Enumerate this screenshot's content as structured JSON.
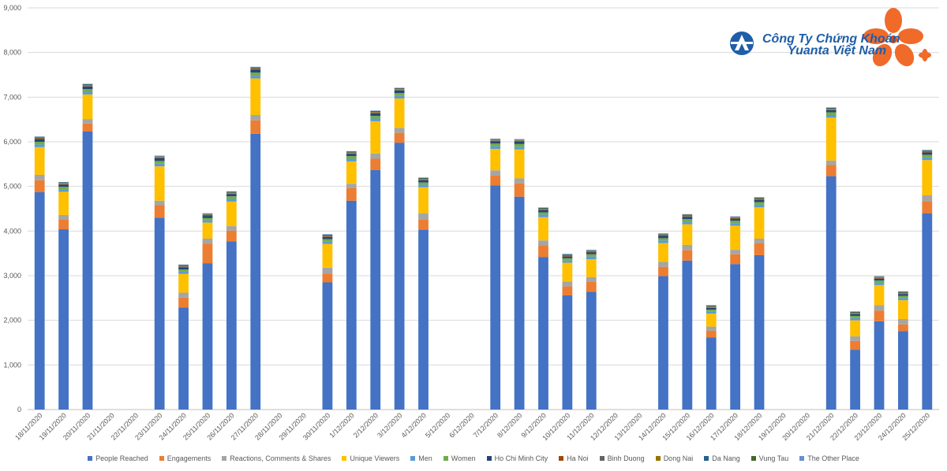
{
  "brand": {
    "line1": "Công Ty Chứng Khoán",
    "line2": "Yuanta Việt Nam",
    "text_color": "#1f5ea8",
    "flower_color": "#f06a2a"
  },
  "chart_data": {
    "type": "bar",
    "stacked": true,
    "title": "",
    "xlabel": "",
    "ylabel": "",
    "ylim": [
      0,
      9000
    ],
    "yticks": [
      "0",
      "1,000",
      "2,000",
      "3,000",
      "4,000",
      "5,000",
      "6,000",
      "7,000",
      "8,000",
      "9,000"
    ],
    "grid": true,
    "legend_position": "bottom",
    "categories": [
      "18/11/2020",
      "19/11/2020",
      "20/11/2020",
      "21/11/2020",
      "22/11/2020",
      "23/11/2020",
      "24/11/2020",
      "25/11/2020",
      "26/11/2020",
      "27/11/2020",
      "28/11/2020",
      "29/11/2020",
      "30/11/2020",
      "1/12/2020",
      "2/12/2020",
      "3/12/2020",
      "4/12/2020",
      "5/12/2020",
      "6/12/2020",
      "7/12/2020",
      "8/12/2020",
      "9/12/2020",
      "10/12/2020",
      "11/12/2020",
      "12/12/2020",
      "13/12/2020",
      "14/12/2020",
      "15/12/2020",
      "16/12/2020",
      "17/12/2020",
      "18/12/2020",
      "19/12/2020",
      "20/12/2020",
      "21/12/2020",
      "22/12/2020",
      "23/12/2020",
      "24/12/2020",
      "25/12/2020"
    ],
    "series": [
      {
        "name": "People Reached",
        "color": "#4472c4",
        "values": [
          4870,
          4040,
          6230,
          0,
          0,
          4300,
          2290,
          3280,
          3770,
          6180,
          0,
          0,
          2850,
          4680,
          5370,
          5980,
          4030,
          0,
          0,
          5020,
          4770,
          3420,
          2560,
          2640,
          0,
          0,
          2990,
          3340,
          1620,
          3260,
          3460,
          0,
          0,
          5230,
          1340,
          1980,
          1760,
          4400
        ]
      },
      {
        "name": "Engagements",
        "color": "#ed7d31",
        "values": [
          270,
          220,
          180,
          0,
          0,
          280,
          220,
          440,
          240,
          300,
          0,
          0,
          200,
          280,
          250,
          220,
          230,
          0,
          0,
          220,
          300,
          250,
          200,
          220,
          0,
          0,
          210,
          230,
          150,
          220,
          270,
          0,
          0,
          250,
          200,
          240,
          150,
          270
        ]
      },
      {
        "name": "Reactions, Comments & Shares",
        "color": "#a5a5a5",
        "values": [
          120,
          100,
          100,
          0,
          0,
          100,
          110,
          110,
          100,
          120,
          0,
          0,
          130,
          100,
          120,
          110,
          140,
          0,
          0,
          120,
          110,
          120,
          110,
          110,
          0,
          0,
          110,
          120,
          90,
          100,
          100,
          0,
          0,
          100,
          100,
          120,
          120,
          130
        ]
      },
      {
        "name": "Unique Viewers",
        "color": "#ffc000",
        "values": [
          620,
          520,
          550,
          0,
          0,
          770,
          420,
          360,
          550,
          820,
          0,
          0,
          530,
          500,
          720,
          660,
          580,
          0,
          0,
          480,
          650,
          520,
          420,
          400,
          0,
          0,
          420,
          460,
          290,
          540,
          700,
          0,
          0,
          960,
          360,
          450,
          420,
          790
        ]
      },
      {
        "name": "Men",
        "color": "#5b9bd5",
        "values": [
          60,
          60,
          60,
          0,
          0,
          60,
          50,
          50,
          60,
          60,
          0,
          0,
          60,
          60,
          60,
          60,
          60,
          0,
          0,
          60,
          60,
          60,
          50,
          60,
          0,
          0,
          60,
          60,
          50,
          60,
          60,
          0,
          0,
          60,
          50,
          50,
          50,
          60
        ]
      },
      {
        "name": "Women",
        "color": "#70ad47",
        "values": [
          60,
          50,
          60,
          0,
          0,
          60,
          50,
          50,
          60,
          70,
          0,
          0,
          50,
          60,
          60,
          60,
          50,
          0,
          0,
          60,
          60,
          50,
          50,
          50,
          0,
          0,
          50,
          60,
          40,
          50,
          60,
          0,
          0,
          60,
          50,
          50,
          50,
          60
        ]
      },
      {
        "name": "Ho Chi Minh City",
        "color": "#264478",
        "values": [
          60,
          50,
          60,
          0,
          0,
          60,
          50,
          50,
          50,
          70,
          0,
          0,
          50,
          50,
          60,
          60,
          50,
          0,
          0,
          50,
          50,
          50,
          40,
          40,
          0,
          0,
          50,
          50,
          40,
          40,
          50,
          0,
          0,
          50,
          40,
          40,
          40,
          50
        ]
      },
      {
        "name": "Ha Noi",
        "color": "#9e480e",
        "values": [
          10,
          10,
          10,
          0,
          0,
          10,
          10,
          10,
          10,
          10,
          0,
          0,
          10,
          10,
          10,
          10,
          10,
          0,
          0,
          10,
          10,
          10,
          10,
          10,
          0,
          0,
          10,
          10,
          10,
          10,
          10,
          0,
          0,
          10,
          10,
          10,
          10,
          10
        ]
      },
      {
        "name": "Binh Duong",
        "color": "#636363",
        "values": [
          10,
          10,
          10,
          0,
          0,
          10,
          10,
          10,
          10,
          10,
          0,
          0,
          10,
          10,
          10,
          10,
          10,
          0,
          0,
          10,
          10,
          10,
          10,
          10,
          0,
          0,
          10,
          10,
          10,
          10,
          10,
          0,
          0,
          10,
          10,
          10,
          10,
          10
        ]
      },
      {
        "name": "Dong Nai",
        "color": "#997300",
        "values": [
          10,
          10,
          10,
          0,
          0,
          10,
          10,
          10,
          10,
          10,
          0,
          0,
          10,
          10,
          10,
          10,
          10,
          0,
          0,
          10,
          10,
          10,
          10,
          10,
          0,
          0,
          10,
          10,
          10,
          10,
          10,
          0,
          0,
          10,
          10,
          10,
          10,
          10
        ]
      },
      {
        "name": "Da Nang",
        "color": "#255e91",
        "values": [
          10,
          10,
          10,
          0,
          0,
          10,
          10,
          10,
          10,
          10,
          0,
          0,
          10,
          10,
          10,
          10,
          10,
          0,
          0,
          10,
          10,
          10,
          10,
          10,
          0,
          0,
          10,
          10,
          10,
          10,
          10,
          0,
          0,
          10,
          10,
          10,
          10,
          10
        ]
      },
      {
        "name": "Vung Tau",
        "color": "#43682b",
        "values": [
          10,
          10,
          10,
          0,
          0,
          10,
          10,
          10,
          10,
          10,
          0,
          0,
          10,
          10,
          10,
          10,
          10,
          0,
          0,
          10,
          10,
          10,
          10,
          10,
          0,
          0,
          10,
          10,
          10,
          10,
          10,
          0,
          0,
          10,
          10,
          10,
          10,
          10
        ]
      },
      {
        "name": "The Other Place",
        "color": "#698ed0",
        "values": [
          10,
          10,
          10,
          0,
          0,
          10,
          10,
          10,
          10,
          10,
          0,
          0,
          10,
          10,
          10,
          10,
          10,
          0,
          0,
          10,
          10,
          10,
          10,
          10,
          0,
          0,
          10,
          10,
          10,
          10,
          10,
          0,
          0,
          10,
          10,
          10,
          10,
          10
        ]
      }
    ]
  }
}
